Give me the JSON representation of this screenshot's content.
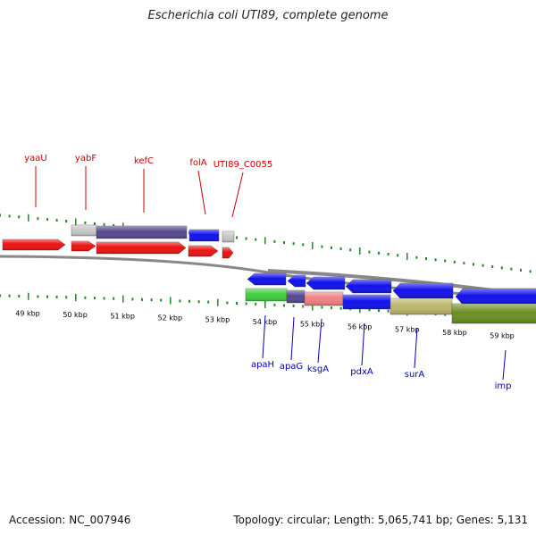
{
  "title": "Escherichia coli UTI89, complete genome",
  "footer": {
    "accession": "Accession: NC_007946",
    "summary": "Topology: circular; Length: 5,065,741 bp; Genes: 5,131"
  },
  "colors": {
    "forward_gene": "#ee1111",
    "reverse_gene": "#1111ee",
    "forward_label": "#cc0000",
    "reverse_label": "#0000bb",
    "backbone": "#888888",
    "tick": "#228b22",
    "grey_feature": "#c8c8c8",
    "purple_feature": "#54498c",
    "green_feature": "#3fcf3f",
    "salmon_feature": "#f08080",
    "khaki_feature": "#bdb76b",
    "olive_feature": "#6b8e23"
  },
  "scale_labels": [
    "49 kbp",
    "50 kbp",
    "51 kbp",
    "52 kbp",
    "53 kbp",
    "54 kbp",
    "55 kbp",
    "56 kbp",
    "57 kbp",
    "58 kbp",
    "59 kbp"
  ],
  "top_genes": [
    {
      "name": "yaaU",
      "kbp": 49.3
    },
    {
      "name": "yabF",
      "kbp": 50.2
    },
    {
      "name": "kefC",
      "kbp": 51.4
    },
    {
      "name": "folA",
      "kbp": 52.3
    },
    {
      "name": "UTI89_C0055",
      "kbp": 52.9
    }
  ],
  "bottom_genes": [
    {
      "name": "apaH",
      "kbp": 54.4
    },
    {
      "name": "apaG",
      "kbp": 55.0
    },
    {
      "name": "ksgA",
      "kbp": 55.4
    },
    {
      "name": "pdxA",
      "kbp": 56.2
    },
    {
      "name": "surA",
      "kbp": 57.3
    },
    {
      "name": "imp",
      "kbp": 59.4
    }
  ]
}
